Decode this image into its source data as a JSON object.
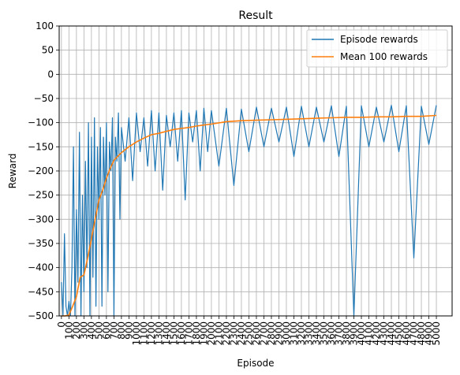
{
  "chart_data": {
    "type": "line",
    "title": "Result",
    "xlabel": "Episode",
    "ylabel": "Reward",
    "xlim": [
      -30,
      5210
    ],
    "ylim": [
      -500,
      100
    ],
    "grid": true,
    "legend_position": "top-right",
    "x_ticks": [
      0,
      100,
      200,
      300,
      400,
      500,
      600,
      700,
      800,
      900,
      1000,
      1100,
      1200,
      1300,
      1400,
      1500,
      1600,
      1700,
      1800,
      1900,
      2000,
      2100,
      2200,
      2300,
      2400,
      2500,
      2600,
      2700,
      2800,
      2900,
      3000,
      3100,
      3200,
      3300,
      3400,
      3500,
      3600,
      3700,
      3800,
      3900,
      4000,
      4100,
      4200,
      4300,
      4400,
      4500,
      4600,
      4700,
      4800,
      4900,
      5000
    ],
    "y_ticks": [
      100,
      50,
      0,
      -50,
      -100,
      -150,
      -200,
      -250,
      -300,
      -350,
      -400,
      -450,
      -500
    ],
    "series": [
      {
        "name": "Episode rewards",
        "color": "#1f77b4",
        "x": [
          0,
          20,
          40,
          60,
          80,
          100,
          120,
          140,
          160,
          180,
          200,
          220,
          240,
          260,
          280,
          300,
          320,
          340,
          360,
          380,
          400,
          420,
          440,
          460,
          480,
          500,
          520,
          540,
          560,
          580,
          600,
          620,
          640,
          660,
          680,
          700,
          720,
          740,
          760,
          780,
          800,
          850,
          900,
          950,
          1000,
          1050,
          1100,
          1150,
          1200,
          1250,
          1300,
          1350,
          1400,
          1450,
          1500,
          1550,
          1600,
          1650,
          1700,
          1750,
          1800,
          1850,
          1900,
          1950,
          2000,
          2100,
          2200,
          2300,
          2400,
          2500,
          2600,
          2700,
          2800,
          2900,
          3000,
          3100,
          3200,
          3300,
          3400,
          3500,
          3600,
          3700,
          3800,
          3900,
          4000,
          4100,
          4200,
          4300,
          4400,
          4500,
          4600,
          4700,
          4800,
          4900,
          5000
        ],
        "values": [
          -430,
          -500,
          -330,
          -480,
          -500,
          -470,
          -500,
          -400,
          -150,
          -500,
          -280,
          -430,
          -120,
          -500,
          -250,
          -450,
          -180,
          -400,
          -100,
          -500,
          -130,
          -420,
          -90,
          -480,
          -150,
          -300,
          -110,
          -480,
          -130,
          -250,
          -100,
          -450,
          -140,
          -200,
          -90,
          -500,
          -130,
          -180,
          -80,
          -300,
          -110,
          -180,
          -90,
          -220,
          -80,
          -160,
          -90,
          -190,
          -75,
          -200,
          -80,
          -240,
          -85,
          -150,
          -80,
          -180,
          -75,
          -260,
          -80,
          -140,
          -75,
          -200,
          -70,
          -160,
          -75,
          -190,
          -70,
          -230,
          -72,
          -160,
          -68,
          -150,
          -70,
          -140,
          -68,
          -170,
          -66,
          -150,
          -68,
          -140,
          -65,
          -170,
          -66,
          -500,
          -65,
          -150,
          -68,
          -140,
          -64,
          -160,
          -65,
          -380,
          -66,
          -145,
          -64
        ]
      },
      {
        "name": "Mean 100 rewards",
        "color": "#ff7f0e",
        "x": [
          0,
          50,
          100,
          150,
          200,
          250,
          300,
          350,
          400,
          450,
          500,
          550,
          600,
          650,
          700,
          750,
          800,
          900,
          1000,
          1100,
          1200,
          1300,
          1400,
          1500,
          1600,
          1700,
          1800,
          1900,
          2000,
          2200,
          2400,
          2600,
          2800,
          3000,
          3200,
          3400,
          3600,
          3800,
          4000,
          4200,
          4400,
          4600,
          4800,
          5000
        ],
        "values": [
          -500,
          -500,
          -498,
          -480,
          -460,
          -420,
          -415,
          -380,
          -340,
          -300,
          -260,
          -240,
          -215,
          -195,
          -178,
          -170,
          -162,
          -150,
          -140,
          -132,
          -125,
          -122,
          -118,
          -114,
          -112,
          -110,
          -107,
          -105,
          -103,
          -98,
          -96,
          -95,
          -94,
          -93,
          -92,
          -91,
          -90,
          -89,
          -89,
          -88,
          -88,
          -87,
          -87,
          -85
        ]
      }
    ]
  }
}
